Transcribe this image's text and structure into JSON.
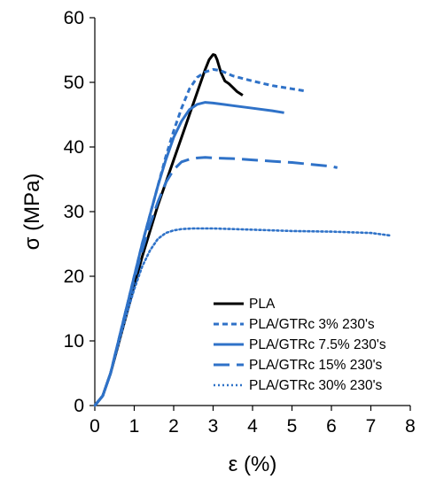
{
  "chart_data": {
    "type": "line",
    "title": "",
    "xlabel": "ε (%)",
    "ylabel": "σ (MPa)",
    "xlim": [
      0,
      8
    ],
    "ylim": [
      0,
      60
    ],
    "xticks": [
      "0",
      "1",
      "2",
      "3",
      "4",
      "5",
      "6",
      "7",
      "8"
    ],
    "yticks": [
      "0",
      "10",
      "20",
      "30",
      "40",
      "50",
      "60"
    ],
    "grid": false,
    "legend_position": "bottom-right",
    "series": [
      {
        "name": "PLA",
        "color": "#000000",
        "dash": "solid",
        "points": [
          [
            0,
            0
          ],
          [
            0.2,
            1.5
          ],
          [
            0.4,
            5
          ],
          [
            0.6,
            9.5
          ],
          [
            0.8,
            14
          ],
          [
            1.0,
            18.5
          ],
          [
            1.2,
            23
          ],
          [
            1.4,
            27
          ],
          [
            1.6,
            31
          ],
          [
            1.8,
            34.5
          ],
          [
            2.0,
            38
          ],
          [
            2.2,
            41.5
          ],
          [
            2.4,
            45
          ],
          [
            2.6,
            48.5
          ],
          [
            2.8,
            52
          ],
          [
            2.9,
            53.5
          ],
          [
            3.0,
            54.3
          ],
          [
            3.05,
            54.2
          ],
          [
            3.1,
            53.5
          ],
          [
            3.2,
            51.5
          ],
          [
            3.3,
            50.2
          ],
          [
            3.4,
            49.8
          ],
          [
            3.5,
            49.2
          ],
          [
            3.6,
            48.6
          ],
          [
            3.75,
            48.0
          ]
        ]
      },
      {
        "name": "PLA/GTRc 3% 230's",
        "color": "#2f72c8",
        "dash": "short",
        "points": [
          [
            0,
            0
          ],
          [
            0.2,
            1.5
          ],
          [
            0.4,
            5
          ],
          [
            0.6,
            10
          ],
          [
            0.8,
            15
          ],
          [
            1.0,
            20
          ],
          [
            1.2,
            25
          ],
          [
            1.4,
            29.5
          ],
          [
            1.6,
            34
          ],
          [
            1.8,
            38.5
          ],
          [
            2.0,
            42.5
          ],
          [
            2.2,
            46
          ],
          [
            2.4,
            49
          ],
          [
            2.6,
            50.8
          ],
          [
            2.8,
            51.6
          ],
          [
            3.0,
            52.0
          ],
          [
            3.2,
            51.8
          ],
          [
            3.5,
            51.0
          ],
          [
            4.0,
            50.2
          ],
          [
            4.5,
            49.5
          ],
          [
            5.0,
            49.0
          ],
          [
            5.3,
            48.7
          ]
        ]
      },
      {
        "name": "PLA/GTRc 7.5% 230's",
        "color": "#2f72c8",
        "dash": "solid",
        "points": [
          [
            0,
            0
          ],
          [
            0.2,
            1.5
          ],
          [
            0.4,
            5
          ],
          [
            0.6,
            10
          ],
          [
            0.8,
            15
          ],
          [
            1.0,
            20
          ],
          [
            1.2,
            25
          ],
          [
            1.4,
            29.5
          ],
          [
            1.6,
            34
          ],
          [
            1.8,
            38
          ],
          [
            2.0,
            41.5
          ],
          [
            2.2,
            44
          ],
          [
            2.4,
            45.8
          ],
          [
            2.6,
            46.6
          ],
          [
            2.8,
            46.9
          ],
          [
            3.0,
            46.8
          ],
          [
            3.5,
            46.4
          ],
          [
            4.0,
            46.0
          ],
          [
            4.5,
            45.6
          ],
          [
            4.8,
            45.3
          ]
        ]
      },
      {
        "name": "PLA/GTRc 15% 230's",
        "color": "#2f72c8",
        "dash": "long",
        "points": [
          [
            0,
            0
          ],
          [
            0.2,
            1.5
          ],
          [
            0.4,
            5
          ],
          [
            0.6,
            10
          ],
          [
            0.8,
            15
          ],
          [
            1.0,
            19.5
          ],
          [
            1.2,
            24
          ],
          [
            1.4,
            28
          ],
          [
            1.6,
            31.5
          ],
          [
            1.8,
            34.5
          ],
          [
            2.0,
            36.5
          ],
          [
            2.2,
            37.7
          ],
          [
            2.4,
            38.1
          ],
          [
            2.6,
            38.3
          ],
          [
            2.8,
            38.4
          ],
          [
            3.0,
            38.3
          ],
          [
            3.5,
            38.2
          ],
          [
            4.0,
            38.0
          ],
          [
            4.5,
            37.8
          ],
          [
            5.0,
            37.6
          ],
          [
            5.5,
            37.3
          ],
          [
            6.0,
            37.0
          ],
          [
            6.15,
            36.8
          ]
        ]
      },
      {
        "name": "PLA/GTRc 30% 230's",
        "color": "#2f72c8",
        "dash": "dotted",
        "points": [
          [
            0,
            0
          ],
          [
            0.2,
            1.5
          ],
          [
            0.4,
            5
          ],
          [
            0.6,
            9.5
          ],
          [
            0.8,
            14
          ],
          [
            1.0,
            18
          ],
          [
            1.2,
            21.5
          ],
          [
            1.4,
            24
          ],
          [
            1.6,
            25.8
          ],
          [
            1.8,
            26.7
          ],
          [
            2.0,
            27.1
          ],
          [
            2.2,
            27.3
          ],
          [
            2.5,
            27.4
          ],
          [
            3.0,
            27.4
          ],
          [
            3.5,
            27.3
          ],
          [
            4.0,
            27.2
          ],
          [
            5.0,
            27.0
          ],
          [
            6.0,
            26.9
          ],
          [
            7.0,
            26.7
          ],
          [
            7.5,
            26.3
          ]
        ]
      }
    ]
  }
}
